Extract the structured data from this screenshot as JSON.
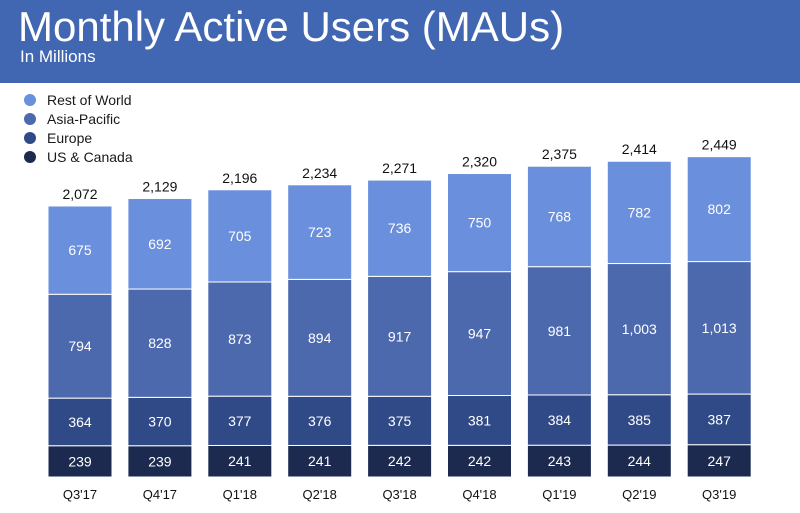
{
  "header": {
    "title": "Monthly Active Users (MAUs)",
    "subtitle": "In Millions",
    "background": "#4267b2"
  },
  "chart_data": {
    "type": "bar",
    "stacked": true,
    "title": "Monthly Active Users (MAUs)",
    "subtitle": "In Millions",
    "xlabel": "",
    "ylabel": "",
    "legend_position": "top-left",
    "grid": false,
    "categories": [
      "Q3'17",
      "Q4'17",
      "Q1'18",
      "Q2'18",
      "Q3'18",
      "Q4'18",
      "Q1'19",
      "Q2'19",
      "Q3'19"
    ],
    "totals": [
      "2,072",
      "2,129",
      "2,196",
      "2,234",
      "2,271",
      "2,320",
      "2,375",
      "2,414",
      "2,449"
    ],
    "total_values": [
      2072,
      2129,
      2196,
      2234,
      2271,
      2320,
      2375,
      2414,
      2449
    ],
    "series": [
      {
        "name": "US & Canada",
        "color": "#1b2a4e",
        "values": [
          239,
          239,
          241,
          241,
          242,
          242,
          243,
          244,
          247
        ],
        "labels": [
          "239",
          "239",
          "241",
          "241",
          "242",
          "242",
          "243",
          "244",
          "247"
        ]
      },
      {
        "name": "Europe",
        "color": "#2f4a87",
        "values": [
          364,
          370,
          377,
          376,
          375,
          381,
          384,
          385,
          387
        ],
        "labels": [
          "364",
          "370",
          "377",
          "376",
          "375",
          "381",
          "384",
          "385",
          "387"
        ]
      },
      {
        "name": "Asia-Pacific",
        "color": "#4d69ae",
        "values": [
          794,
          828,
          873,
          894,
          917,
          947,
          981,
          1003,
          1013
        ],
        "labels": [
          "794",
          "828",
          "873",
          "894",
          "917",
          "947",
          "981",
          "1,003",
          "1,013"
        ]
      },
      {
        "name": "Rest of World",
        "color": "#6a8fdc",
        "values": [
          675,
          692,
          705,
          723,
          736,
          750,
          768,
          782,
          802
        ],
        "labels": [
          "675",
          "692",
          "705",
          "723",
          "736",
          "750",
          "768",
          "782",
          "802"
        ]
      }
    ],
    "legend_order": [
      "Rest of World",
      "Asia-Pacific",
      "Europe",
      "US & Canada"
    ]
  }
}
